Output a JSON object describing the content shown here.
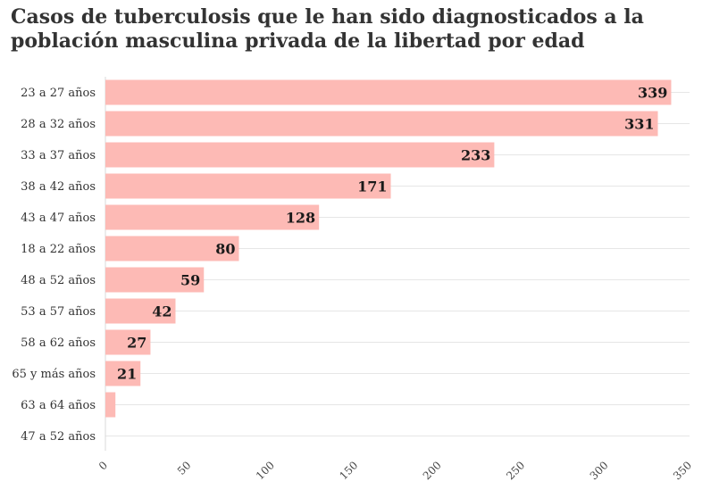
{
  "chart_data": {
    "type": "bar",
    "orientation": "horizontal",
    "title": "Casos de tuberculosis que le han sido diagnosticados a la población masculina privada de la libertad por edad",
    "categories": [
      "23 a 27 años",
      "28 a 32 años",
      "33 a 37 años",
      "38 a 42 años",
      "43 a 47 años",
      "18 a 22 años",
      "48 a 52 años",
      "53 a 57 años",
      "58 a 62 años",
      "65 y más años",
      "63 a 64 años",
      "47 a 52 años"
    ],
    "values": [
      339,
      331,
      233,
      171,
      128,
      80,
      59,
      42,
      27,
      21,
      6,
      0
    ],
    "value_labels": [
      "339",
      "331",
      "233",
      "171",
      "128",
      "80",
      "59",
      "42",
      "27",
      "21",
      "",
      ""
    ],
    "xlim": [
      0,
      350
    ],
    "xticks": [
      0,
      50,
      100,
      150,
      200,
      250,
      300,
      350
    ],
    "xlabel": "",
    "ylabel": "",
    "grid": true,
    "bar_color": "#fdbab5"
  }
}
